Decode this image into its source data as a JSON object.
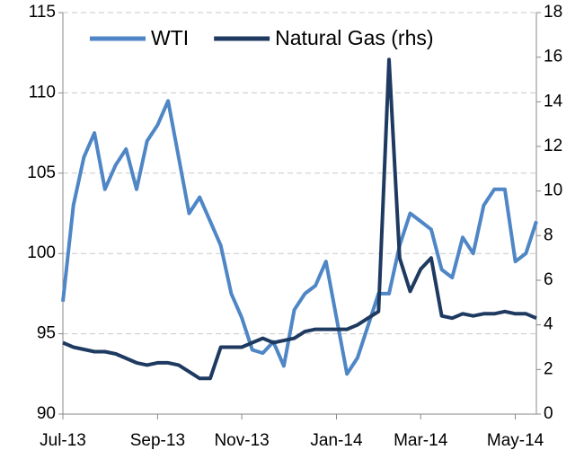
{
  "chart_data": {
    "type": "line",
    "categories": [
      "Jul-13",
      null,
      null,
      null,
      null,
      null,
      null,
      null,
      null,
      "Sep-13",
      null,
      null,
      null,
      null,
      null,
      null,
      null,
      "Nov-13",
      null,
      null,
      null,
      null,
      null,
      null,
      null,
      null,
      "Jan-14",
      null,
      null,
      null,
      null,
      null,
      null,
      null,
      "Mar-14",
      null,
      null,
      null,
      null,
      null,
      null,
      null,
      null,
      "May-14",
      null,
      null
    ],
    "series": [
      {
        "name": "WTI",
        "color": "#4f86c6",
        "values": [
          97,
          103,
          106,
          107.5,
          104,
          105.5,
          106.5,
          104,
          107,
          108,
          109.5,
          106,
          102.5,
          103.5,
          102,
          100.5,
          97.5,
          96,
          94,
          93.8,
          94.5,
          93,
          96.5,
          97.5,
          98,
          99.5,
          96,
          92.5,
          93.5,
          95.5,
          97.5,
          97.5,
          100.5,
          102.5,
          102,
          101.5,
          99,
          98.5,
          101,
          100,
          103,
          104,
          104,
          99.5,
          100,
          102
        ]
      },
      {
        "name": "Natural Gas (rhs)",
        "color": "#1f3a60",
        "axis": "y2",
        "values": [
          3.2,
          3.0,
          2.9,
          2.8,
          2.8,
          2.7,
          2.5,
          2.3,
          2.2,
          2.3,
          2.3,
          2.2,
          1.9,
          1.6,
          1.6,
          3.0,
          3.0,
          3.0,
          3.2,
          3.4,
          3.2,
          3.3,
          3.4,
          3.7,
          3.8,
          3.8,
          3.8,
          3.8,
          4.0,
          4.3,
          4.6,
          15.9,
          7.0,
          5.5,
          6.5,
          7.0,
          4.4,
          4.3,
          4.5,
          4.4,
          4.5,
          4.5,
          4.6,
          4.5,
          4.5,
          4.3
        ]
      }
    ],
    "ylim": [
      90,
      115
    ],
    "yticks": [
      90,
      95,
      100,
      105,
      110,
      115
    ],
    "y2lim": [
      0,
      18
    ],
    "y2ticks": [
      0,
      2,
      4,
      6,
      8,
      10,
      12,
      14,
      16,
      18
    ],
    "grid": true,
    "legend": "top"
  }
}
